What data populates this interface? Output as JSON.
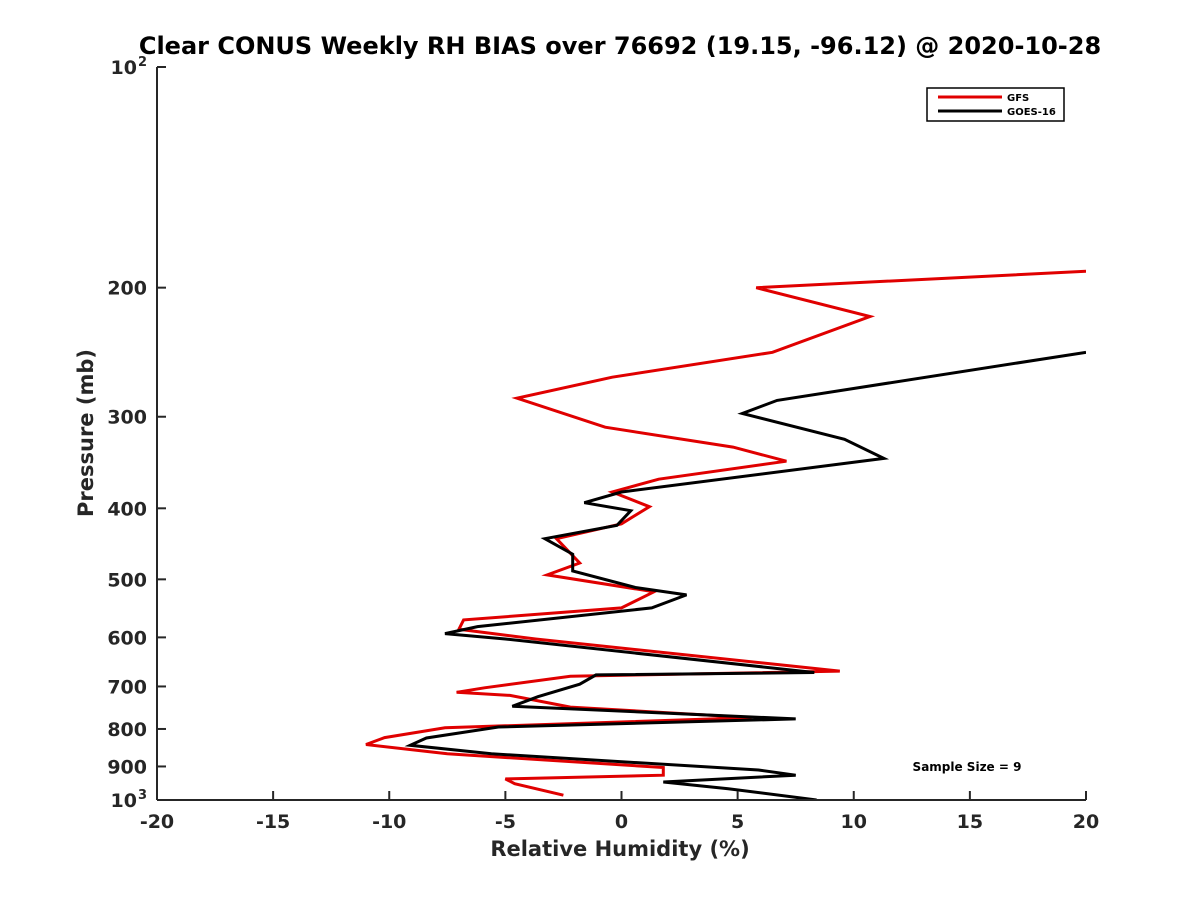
{
  "chart_data": {
    "type": "line",
    "title": "Clear CONUS Weekly RH BIAS over 76692 (19.15, -96.12) @ 2020-10-28",
    "xlabel": "Relative Humidity (%)",
    "ylabel": "Pressure (mb)",
    "xlim": [
      -20,
      20
    ],
    "ylim": [
      100,
      1000
    ],
    "yscale": "log",
    "y_reversed": true,
    "x_ticks": [
      -20,
      -15,
      -10,
      -5,
      0,
      5,
      10,
      15,
      20
    ],
    "x_tick_labels": [
      "-20",
      "-15",
      "-10",
      "-5",
      "0",
      "5",
      "10",
      "15",
      "20"
    ],
    "y_ticks": [
      200,
      300,
      400,
      500,
      600,
      700,
      800,
      900
    ],
    "y_tick_labels": [
      "200",
      "300",
      "400",
      "500",
      "600",
      "700",
      "800",
      "900"
    ],
    "y_end_labels": [
      {
        "value": 100,
        "base": "10",
        "exp": "2"
      },
      {
        "value": 1000,
        "base": "10",
        "exp": "3"
      }
    ],
    "grid": false,
    "legend_position": "top-right",
    "annotation": "Sample Size = 9",
    "series": [
      {
        "name": "GFS",
        "color": "#e00000",
        "x": [
          20,
          5.8,
          10.7,
          6.5,
          -0.4,
          -4.5,
          -0.7,
          4.8,
          7.1,
          1.6,
          -0.4,
          1.2,
          0.0,
          -2.8,
          -1.8,
          -3.2,
          1.4,
          0.0,
          -6.8,
          -7.0,
          -3.7,
          9.4,
          -2.2,
          -5.9,
          -7.1,
          -4.8,
          -2.2,
          5.6,
          -7.6,
          -10.2,
          -11.0,
          -7.5,
          1.8,
          1.8,
          -5.0,
          -4.6,
          -2.5
        ],
        "y": [
          190,
          200,
          219,
          245,
          265,
          283,
          310,
          330,
          345,
          365,
          380,
          398,
          420,
          440,
          475,
          493,
          520,
          547,
          568,
          585,
          603,
          667,
          678,
          703,
          713,
          720,
          747,
          772,
          797,
          822,
          840,
          865,
          903,
          925,
          936,
          950,
          985
        ]
      },
      {
        "name": "GOES-16",
        "color": "#000000",
        "x": [
          20,
          6.7,
          5.2,
          9.6,
          11.3,
          0.0,
          -1.6,
          0.4,
          -0.2,
          -3.3,
          -2.1,
          -2.1,
          0.6,
          2.8,
          1.3,
          -6.2,
          -7.6,
          -5.0,
          8.3,
          -1.1,
          -1.8,
          -3.6,
          -4.7,
          7.5,
          -5.3,
          -8.4,
          -9.1,
          -5.6,
          5.9,
          7.5,
          1.8,
          4.6,
          8.4
        ],
        "y": [
          245,
          285,
          297,
          322,
          342,
          380,
          393,
          403,
          422,
          440,
          462,
          487,
          513,
          525,
          547,
          580,
          593,
          603,
          670,
          675,
          695,
          723,
          745,
          775,
          795,
          823,
          842,
          865,
          910,
          925,
          945,
          965,
          1000
        ]
      }
    ]
  }
}
